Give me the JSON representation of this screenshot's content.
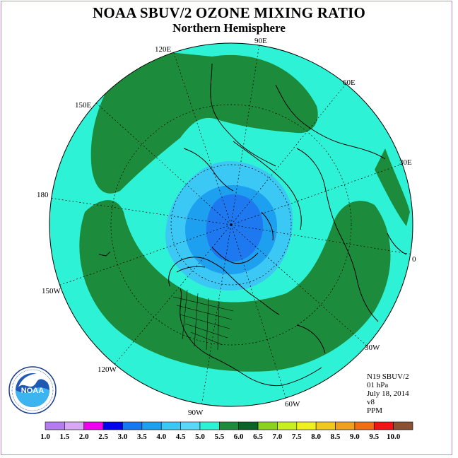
{
  "title": "NOAA SBUV/2 OZONE MIXING RATIO",
  "subtitle": "Northern Hemisphere",
  "longitude_labels": [
    "90E",
    "60E",
    "30E",
    "0",
    "30W",
    "60W",
    "90W",
    "120W",
    "150W",
    "180",
    "150E",
    "120E"
  ],
  "info": {
    "satellite": "N19 SBUV/2",
    "level": "01 hPa",
    "date": "July 18, 2014",
    "version": "v8",
    "units": "PPM"
  },
  "colorbar": {
    "ticks": [
      "1.0",
      "1.5",
      "2.0",
      "2.5",
      "3.0",
      "3.5",
      "4.0",
      "4.5",
      "5.0",
      "5.5",
      "6.0",
      "6.5",
      "7.0",
      "7.5",
      "8.0",
      "8.5",
      "9.0",
      "9.5",
      "10.0"
    ],
    "colors": [
      "#b57cf0",
      "#d9a8f5",
      "#f000f0",
      "#0000f0",
      "#1478f0",
      "#1ea0f0",
      "#3cc8f5",
      "#5ad7f8",
      "#2ef2d6",
      "#1c8c3c",
      "#0a6428",
      "#8ad21e",
      "#c8f01e",
      "#f0f01e",
      "#f0c81e",
      "#f0a01e",
      "#f06e14",
      "#f01414",
      "#8c5032"
    ]
  },
  "map": {
    "regions_ppm": [
      {
        "area": "pole",
        "range": "3.0-3.5"
      },
      {
        "area": "inner ring",
        "range": "3.5-4.5"
      },
      {
        "area": "mid latitudes",
        "range": "5.0-5.5"
      },
      {
        "area": "low latitudes bands",
        "range": "5.5-6.0"
      }
    ],
    "colors": {
      "pole": "#1e78f0",
      "ring_blue": "#1ea0f0",
      "ring_light": "#3cc8f5",
      "cyan": "#2ef2d6",
      "green": "#1c8c3c"
    }
  },
  "logo": {
    "text": "NOAA",
    "arc_text": "NATIONAL OCEANIC AND ATMOSPHERIC ADMINISTRATION · U.S. DEPARTMENT OF COMMERCE"
  }
}
